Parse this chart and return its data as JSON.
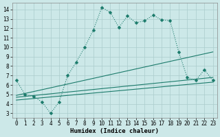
{
  "xlabel": "Humidex (Indice chaleur)",
  "background_color": "#cce8e8",
  "grid_color": "#aacccc",
  "line_color": "#1a7a6a",
  "xlim": [
    -0.5,
    23.5
  ],
  "ylim": [
    2.5,
    14.7
  ],
  "xticks": [
    0,
    1,
    2,
    3,
    4,
    5,
    6,
    7,
    8,
    9,
    10,
    11,
    12,
    13,
    14,
    15,
    16,
    17,
    18,
    19,
    20,
    21,
    22,
    23
  ],
  "yticks": [
    3,
    4,
    5,
    6,
    7,
    8,
    9,
    10,
    11,
    12,
    13,
    14
  ],
  "line1_x": [
    0,
    1,
    2,
    3,
    4,
    5,
    6,
    7,
    8,
    9,
    10,
    11,
    12,
    13,
    14,
    15,
    16,
    17,
    18,
    19,
    20,
    21,
    22,
    23
  ],
  "line1_y": [
    6.5,
    5.0,
    4.8,
    4.2,
    3.0,
    4.2,
    7.0,
    8.4,
    10.0,
    11.8,
    14.2,
    13.7,
    12.1,
    13.3,
    12.6,
    12.8,
    13.4,
    12.9,
    12.8,
    9.5,
    6.8,
    6.5,
    7.6,
    6.5
  ],
  "line2_x": [
    0,
    23
  ],
  "line2_y": [
    4.9,
    9.5
  ],
  "line3_x": [
    0,
    23
  ],
  "line3_y": [
    4.7,
    6.8
  ],
  "line4_x": [
    0,
    23
  ],
  "line4_y": [
    4.4,
    6.3
  ],
  "markersize": 2.5,
  "linewidth": 0.8,
  "tick_fontsize": 5.5,
  "xlabel_fontsize": 6.5
}
